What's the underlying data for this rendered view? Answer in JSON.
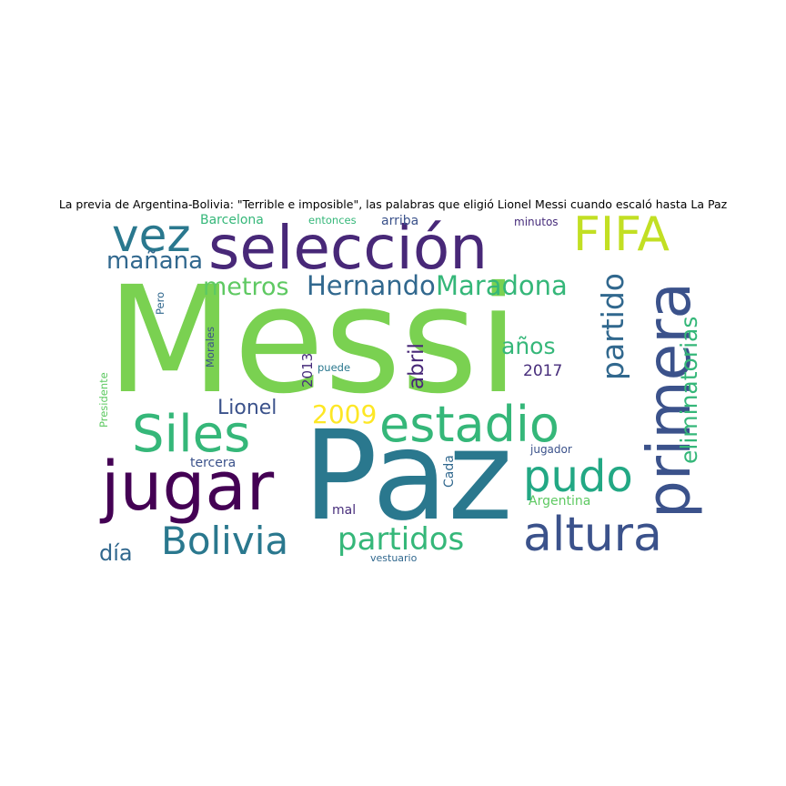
{
  "title": "La previa de Argentina-Bolivia: \"Terrible e imposible\", las palabras que eligió Lionel Messi cuando escaló hasta La Paz",
  "words": [
    {
      "text": "Messi",
      "color": "#7ad151",
      "orientation": "horizontal"
    },
    {
      "text": "Paz",
      "color": "#2a788e",
      "orientation": "horizontal"
    },
    {
      "text": "selección",
      "color": "#482878",
      "orientation": "horizontal"
    },
    {
      "text": "primera",
      "color": "#3b528b",
      "orientation": "vertical"
    },
    {
      "text": "jugar",
      "color": "#440154",
      "orientation": "horizontal"
    },
    {
      "text": "estadio",
      "color": "#35b779",
      "orientation": "horizontal"
    },
    {
      "text": "Siles",
      "color": "#35b779",
      "orientation": "horizontal"
    },
    {
      "text": "altura",
      "color": "#3b528b",
      "orientation": "horizontal"
    },
    {
      "text": "pudo",
      "color": "#22a884",
      "orientation": "horizontal"
    },
    {
      "text": "FIFA",
      "color": "#c2df23",
      "orientation": "horizontal"
    },
    {
      "text": "vez",
      "color": "#2a788e",
      "orientation": "horizontal"
    },
    {
      "text": "Bolivia",
      "color": "#2a788e",
      "orientation": "horizontal"
    },
    {
      "text": "partidos",
      "color": "#35b779",
      "orientation": "horizontal"
    },
    {
      "text": "partido",
      "color": "#31688e",
      "orientation": "vertical"
    },
    {
      "text": "eliminatorias",
      "color": "#35b779",
      "orientation": "vertical"
    },
    {
      "text": "Hernando",
      "color": "#31688e",
      "orientation": "horizontal"
    },
    {
      "text": "Maradona",
      "color": "#35b779",
      "orientation": "horizontal"
    },
    {
      "text": "mañana",
      "color": "#31688e",
      "orientation": "horizontal"
    },
    {
      "text": "metros",
      "color": "#5ec962",
      "orientation": "horizontal"
    },
    {
      "text": "Lionel",
      "color": "#3b528b",
      "orientation": "horizontal"
    },
    {
      "text": "2009",
      "color": "#fde725",
      "orientation": "horizontal"
    },
    {
      "text": "día",
      "color": "#31688e",
      "orientation": "horizontal"
    },
    {
      "text": "años",
      "color": "#35b779",
      "orientation": "horizontal"
    },
    {
      "text": "abril",
      "color": "#482878",
      "orientation": "vertical"
    },
    {
      "text": "2017",
      "color": "#472d7b",
      "orientation": "horizontal"
    },
    {
      "text": "2013",
      "color": "#472d7b",
      "orientation": "vertical"
    },
    {
      "text": "Barcelona",
      "color": "#35b779",
      "orientation": "horizontal"
    },
    {
      "text": "entonces",
      "color": "#35b779",
      "orientation": "horizontal"
    },
    {
      "text": "arriba",
      "color": "#3b528b",
      "orientation": "horizontal"
    },
    {
      "text": "minutos",
      "color": "#472d7b",
      "orientation": "horizontal"
    },
    {
      "text": "Pero",
      "color": "#31688e",
      "orientation": "vertical"
    },
    {
      "text": "Morales",
      "color": "#3b528b",
      "orientation": "vertical"
    },
    {
      "text": "Presidente",
      "color": "#5ec962",
      "orientation": "vertical"
    },
    {
      "text": "puede",
      "color": "#2a788e",
      "orientation": "horizontal"
    },
    {
      "text": "tercera",
      "color": "#3b528b",
      "orientation": "horizontal"
    },
    {
      "text": "Cada",
      "color": "#31688e",
      "orientation": "vertical"
    },
    {
      "text": "jugador",
      "color": "#3b528b",
      "orientation": "horizontal"
    },
    {
      "text": "Argentina",
      "color": "#5ec962",
      "orientation": "horizontal"
    },
    {
      "text": "mal",
      "color": "#472d7b",
      "orientation": "horizontal"
    },
    {
      "text": "vestuario",
      "color": "#31688e",
      "orientation": "horizontal"
    }
  ]
}
